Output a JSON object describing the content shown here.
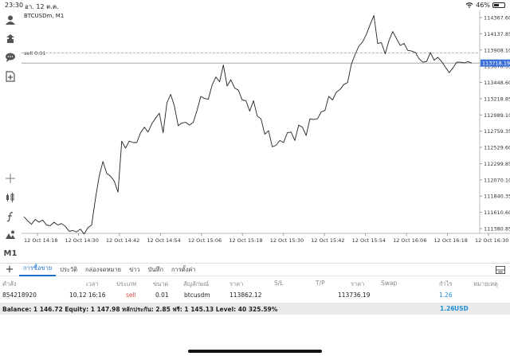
{
  "status_bar": {
    "time": "23:30",
    "date": "อา. 12 ต.ค.",
    "battery": "46%",
    "battery_level": 0.46
  },
  "chart": {
    "symbol": "BTCUSDm, M1",
    "sell_label": "sell 0.01",
    "current_price": "113718.19",
    "price_labels": [
      "114367.60",
      "114137.85",
      "113908.10",
      "113678.35",
      "113448.60",
      "113218.85",
      "112989.10",
      "112759.35",
      "112529.60",
      "112299.85",
      "112070.10",
      "111840.35",
      "111610.60",
      "111380.85"
    ],
    "time_labels": [
      "12 Oct 14:18",
      "12 Oct 14:30",
      "12 Oct 14:42",
      "12 Oct 14:54",
      "12 Oct 15:06",
      "12 Oct 15:18",
      "12 Oct 15:30",
      "12 Oct 15:42",
      "12 Oct 15:54",
      "12 Oct 16:06",
      "12 Oct 16:18",
      "12 Oct 16:30"
    ],
    "colors": {
      "line": "#222222",
      "price_tag_bg": "#3a6fd8",
      "grid": "#e4e4e4",
      "sell_line": "#aaaaaa"
    }
  },
  "chart_data": {
    "type": "line",
    "ylim": [
      111280,
      114450
    ],
    "current_price": 113718.19,
    "sell_price": 113862.12,
    "values": [
      111520,
      111460,
      111410,
      111480,
      111440,
      111470,
      111400,
      111390,
      111440,
      111400,
      111420,
      111380,
      111310,
      111320,
      111300,
      111340,
      111270,
      111360,
      111400,
      111770,
      112100,
      112310,
      112140,
      112100,
      112030,
      111870,
      112600,
      112500,
      112600,
      112580,
      112580,
      112720,
      112800,
      112730,
      112850,
      112930,
      113000,
      112720,
      113150,
      113270,
      113100,
      112820,
      112860,
      112870,
      112830,
      112870,
      113040,
      113240,
      113210,
      113200,
      113400,
      113520,
      113450,
      113690,
      113390,
      113480,
      113360,
      113330,
      113190,
      113180,
      113030,
      113180,
      112960,
      112920,
      112700,
      112750,
      112520,
      112540,
      112610,
      112580,
      112720,
      112730,
      112610,
      112830,
      112800,
      112680,
      112920,
      112910,
      112920,
      113020,
      113040,
      113240,
      113190,
      113300,
      113340,
      113410,
      113440,
      113700,
      113840,
      113960,
      114020,
      114130,
      114270,
      114400,
      114000,
      114010,
      113850,
      114040,
      114170,
      114070,
      113970,
      114000,
      113900,
      113890,
      113870,
      113780,
      113730,
      113740,
      113870,
      113760,
      113800,
      113740,
      113660,
      113580,
      113650,
      113730,
      113730,
      113720,
      113740,
      113718
    ]
  },
  "left_toolbar": [
    {
      "name": "account-icon"
    },
    {
      "name": "transfer-icon"
    },
    {
      "name": "chat-icon"
    },
    {
      "name": "add-document-icon"
    },
    {
      "name": "crosshair-icon"
    },
    {
      "name": "indicators-icon"
    },
    {
      "name": "function-icon"
    },
    {
      "name": "objects-icon"
    },
    {
      "name": "timeframe",
      "label": "M1"
    }
  ],
  "tabs": {
    "plus": "+",
    "items": [
      "การซื้อขาย",
      "ประวัติ",
      "กล่องจดหมาย",
      "ข่าว",
      "บันทึก",
      "การตั้งค่า"
    ]
  },
  "table": {
    "headers": [
      "คำสั่ง",
      "เวลา",
      "ประเภท",
      "ขนาด",
      "สัญลักษณ์",
      "ราคา",
      "S/L",
      "T/P",
      "ราคา",
      "Swap",
      "กำไร",
      "หมายเหตุ"
    ],
    "rows": [
      [
        "854218920",
        "10.12 16:16",
        "sell",
        "0.01",
        "btcusdm",
        "113862.12",
        "",
        "",
        "113736.19",
        "",
        "1.26",
        ""
      ]
    ]
  },
  "balance": {
    "text": "Balance: 1 146.72 Equity: 1 147.98 หลักประกัน: 2.85 ฟรี: 1 145.13 Level: 40 325.59%",
    "profit": "1.26",
    "currency": "USD"
  }
}
